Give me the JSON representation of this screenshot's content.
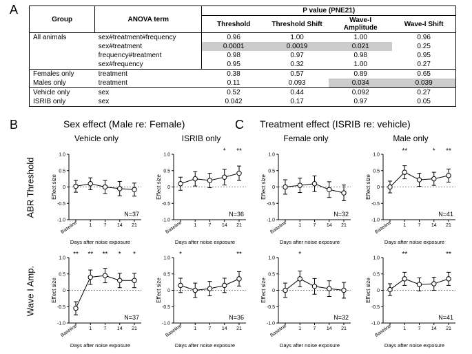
{
  "panels": {
    "A": "A",
    "B": "B",
    "C": "C"
  },
  "table": {
    "header": {
      "group": "Group",
      "anova": "ANOVA term",
      "pvalue": "P value (PNE21)",
      "cols": [
        "Threshold",
        "Threshold Shift",
        "Wave-I Amplitude",
        "Wave-I Shift"
      ]
    },
    "rows": [
      {
        "group": "All animals",
        "term": "sex#treatment#frequency",
        "vals": [
          "0.96",
          "1.00",
          "1.00",
          "0.96"
        ],
        "hl": [
          false,
          false,
          false,
          false
        ],
        "tb": true
      },
      {
        "group": "",
        "term": "sex#treatment",
        "vals": [
          "0.0001",
          "0.0019",
          "0.021",
          "0.25"
        ],
        "hl": [
          true,
          true,
          true,
          false
        ]
      },
      {
        "group": "",
        "term": "frequency#treatment",
        "vals": [
          "0.98",
          "0.97",
          "0.98",
          "0.95"
        ],
        "hl": [
          false,
          false,
          false,
          false
        ]
      },
      {
        "group": "",
        "term": "sex#frequency",
        "vals": [
          "0.95",
          "0.32",
          "1.00",
          "0.27"
        ],
        "hl": [
          false,
          false,
          false,
          false
        ],
        "bb": true
      },
      {
        "group": "Females only",
        "term": "treatment",
        "vals": [
          "0.38",
          "0.57",
          "0.89",
          "0.65"
        ],
        "hl": [
          false,
          false,
          false,
          false
        ]
      },
      {
        "group": "Males only",
        "term": "treatment",
        "vals": [
          "0.11",
          "0.093",
          "0.034",
          "0.039"
        ],
        "hl": [
          false,
          false,
          true,
          true
        ]
      },
      {
        "group": "Vehicle only",
        "term": "sex",
        "vals": [
          "0.52",
          "0.44",
          "0.092",
          "0.27"
        ],
        "hl": [
          false,
          false,
          false,
          false
        ],
        "tb": true
      },
      {
        "group": "ISRIB only",
        "term": "sex",
        "vals": [
          "0.042",
          "0.17",
          "0.97",
          "0.05"
        ],
        "hl": [
          false,
          false,
          false,
          false
        ],
        "bb": true
      }
    ]
  },
  "sectionB": "Sex effect (Male re: Female)",
  "sectionC": "Treatment effect (ISRIB re: vehicle)",
  "colTitles": [
    "Vehicle only",
    "ISRIB only",
    "Female only",
    "Male only"
  ],
  "rowTitles": [
    "ABR Threshold",
    "Wave I Amp."
  ],
  "yAxisLabel": "Effect size",
  "xAxisLabel": "Days after noise exposure",
  "chartStyle": {
    "ylim": [
      -1.0,
      1.0
    ],
    "yticks": [
      -1.0,
      -0.5,
      0,
      0.5,
      1.0
    ],
    "ytick_labels": [
      "-1.0",
      "-0.5",
      "0",
      "0.5",
      "1.0"
    ],
    "xcats": [
      "Baseline",
      "1",
      "7",
      "14",
      "21"
    ],
    "marker_color": "#ffffff",
    "line_color": "#000000",
    "background_color": "#ffffff",
    "grid_color": "#000000",
    "grid_dash": "2 2",
    "line_width": 1,
    "marker_radius": 3.2,
    "err_cap": 3,
    "font_family": "Arial",
    "axis_fontsize": 7,
    "label_fontsize": 8
  },
  "charts": {
    "r0c0": {
      "N": "N=37",
      "points": [
        {
          "y": 0.02,
          "e": 0.18
        },
        {
          "y": 0.1,
          "e": 0.18
        },
        {
          "y": 0.0,
          "e": 0.2
        },
        {
          "y": -0.05,
          "e": 0.22
        },
        {
          "y": -0.08,
          "e": 0.2
        }
      ],
      "sig": [
        "",
        "",
        "",
        "",
        ""
      ]
    },
    "r0c1": {
      "N": "N=36",
      "points": [
        {
          "y": 0.1,
          "e": 0.2
        },
        {
          "y": 0.25,
          "e": 0.22
        },
        {
          "y": 0.2,
          "e": 0.22
        },
        {
          "y": 0.3,
          "e": 0.24
        },
        {
          "y": 0.42,
          "e": 0.22
        }
      ],
      "sig": [
        "",
        "",
        "",
        "*",
        "**"
      ]
    },
    "r0c2": {
      "N": "N=32",
      "points": [
        {
          "y": 0.0,
          "e": 0.22
        },
        {
          "y": 0.05,
          "e": 0.22
        },
        {
          "y": 0.1,
          "e": 0.24
        },
        {
          "y": -0.08,
          "e": 0.24
        },
        {
          "y": -0.18,
          "e": 0.24
        }
      ],
      "sig": [
        "",
        "",
        "",
        "",
        ""
      ]
    },
    "r0c3": {
      "N": "N=41",
      "points": [
        {
          "y": 0.0,
          "e": 0.18
        },
        {
          "y": 0.45,
          "e": 0.2
        },
        {
          "y": 0.22,
          "e": 0.2
        },
        {
          "y": 0.25,
          "e": 0.2
        },
        {
          "y": 0.35,
          "e": 0.2
        }
      ],
      "sig": [
        "",
        "**",
        "",
        "*",
        "**"
      ]
    },
    "r1c0": {
      "N": "N=37",
      "points": [
        {
          "y": -0.55,
          "e": 0.2
        },
        {
          "y": 0.4,
          "e": 0.22
        },
        {
          "y": 0.45,
          "e": 0.22
        },
        {
          "y": 0.3,
          "e": 0.22
        },
        {
          "y": 0.3,
          "e": 0.22
        }
      ],
      "sig": [
        "**",
        "**",
        "**",
        "*",
        "*"
      ]
    },
    "r1c1": {
      "N": "N=36",
      "points": [
        {
          "y": 0.15,
          "e": 0.22
        },
        {
          "y": 0.0,
          "e": 0.22
        },
        {
          "y": 0.05,
          "e": 0.22
        },
        {
          "y": 0.15,
          "e": 0.22
        },
        {
          "y": 0.35,
          "e": 0.22
        }
      ],
      "sig": [
        "*",
        "",
        "",
        "",
        "**"
      ]
    },
    "r1c2": {
      "N": "N=32",
      "points": [
        {
          "y": 0.0,
          "e": 0.22
        },
        {
          "y": 0.35,
          "e": 0.24
        },
        {
          "y": 0.12,
          "e": 0.24
        },
        {
          "y": 0.05,
          "e": 0.24
        },
        {
          "y": 0.0,
          "e": 0.24
        }
      ],
      "sig": [
        "",
        "*",
        "",
        "",
        ""
      ]
    },
    "r1c3": {
      "N": "N=41",
      "points": [
        {
          "y": 0.02,
          "e": 0.18
        },
        {
          "y": 0.35,
          "e": 0.2
        },
        {
          "y": 0.18,
          "e": 0.2
        },
        {
          "y": 0.2,
          "e": 0.2
        },
        {
          "y": 0.35,
          "e": 0.2
        }
      ],
      "sig": [
        "",
        "**",
        "",
        "",
        "**"
      ]
    }
  }
}
